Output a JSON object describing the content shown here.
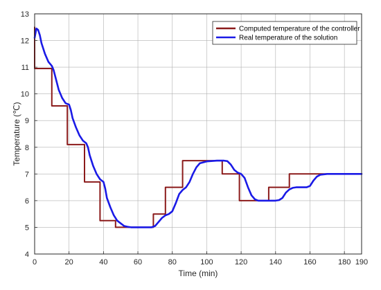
{
  "chart_data": {
    "type": "line",
    "xlabel": "Time (min)",
    "ylabel": "Temperature (℃)",
    "xlim": [
      0,
      190
    ],
    "ylim": [
      4,
      13
    ],
    "xticks": [
      0,
      20,
      40,
      60,
      80,
      100,
      120,
      140,
      160,
      180,
      190
    ],
    "yticks": [
      4,
      5,
      6,
      7,
      8,
      9,
      10,
      11,
      12,
      13
    ],
    "grid": true,
    "legend_position": "top-right",
    "series": [
      {
        "name": "Computed temperature of the controller",
        "color": "#8b1a1a",
        "style": "step",
        "x": [
          0,
          0,
          10,
          10,
          19,
          19,
          29,
          29,
          38,
          38,
          47,
          47,
          50,
          50,
          69,
          69,
          76,
          76,
          86,
          86,
          109,
          109,
          119,
          119,
          136,
          136,
          148,
          148,
          190
        ],
        "y": [
          12.5,
          10.95,
          10.95,
          9.55,
          9.55,
          8.1,
          8.1,
          6.7,
          6.7,
          5.25,
          5.25,
          5.0,
          5.0,
          5.0,
          5.0,
          5.5,
          5.5,
          6.5,
          6.5,
          7.5,
          7.5,
          7.0,
          7.0,
          6.0,
          6.0,
          6.5,
          6.5,
          7.0,
          7.0
        ]
      },
      {
        "name": "Real temperature of the solution",
        "color": "#1a1ae6",
        "style": "line",
        "x": [
          0,
          1,
          2,
          3,
          4,
          6,
          8,
          10,
          11,
          12,
          14,
          16,
          18,
          20,
          21,
          22,
          24,
          26,
          28,
          30,
          31,
          32,
          34,
          36,
          38,
          40,
          41,
          42,
          44,
          46,
          48,
          50,
          52,
          54,
          56,
          58,
          60,
          64,
          68,
          70,
          72,
          74,
          76,
          78,
          80,
          82,
          84,
          86,
          88,
          90,
          92,
          94,
          96,
          100,
          106,
          110,
          112,
          114,
          116,
          118,
          120,
          122,
          124,
          126,
          128,
          130,
          134,
          138,
          140,
          142,
          144,
          146,
          148,
          150,
          152,
          154,
          156,
          158,
          160,
          162,
          164,
          166,
          170,
          176,
          184,
          190
        ],
        "y": [
          12.1,
          12.45,
          12.4,
          12.2,
          11.9,
          11.5,
          11.2,
          11.05,
          10.9,
          10.65,
          10.15,
          9.85,
          9.65,
          9.6,
          9.4,
          9.1,
          8.75,
          8.45,
          8.25,
          8.15,
          8.0,
          7.7,
          7.3,
          7.0,
          6.8,
          6.7,
          6.45,
          6.1,
          5.75,
          5.45,
          5.25,
          5.15,
          5.05,
          5.02,
          5.0,
          5.0,
          5.0,
          5.0,
          5.0,
          5.05,
          5.2,
          5.35,
          5.45,
          5.5,
          5.6,
          5.9,
          6.25,
          6.4,
          6.5,
          6.7,
          7.0,
          7.25,
          7.4,
          7.47,
          7.5,
          7.5,
          7.48,
          7.35,
          7.15,
          7.05,
          7.0,
          6.85,
          6.5,
          6.2,
          6.05,
          6.0,
          6.0,
          6.0,
          6.0,
          6.02,
          6.1,
          6.3,
          6.42,
          6.48,
          6.5,
          6.5,
          6.5,
          6.5,
          6.55,
          6.75,
          6.9,
          6.97,
          7.0,
          7.0,
          7.0,
          7.0
        ]
      }
    ]
  }
}
